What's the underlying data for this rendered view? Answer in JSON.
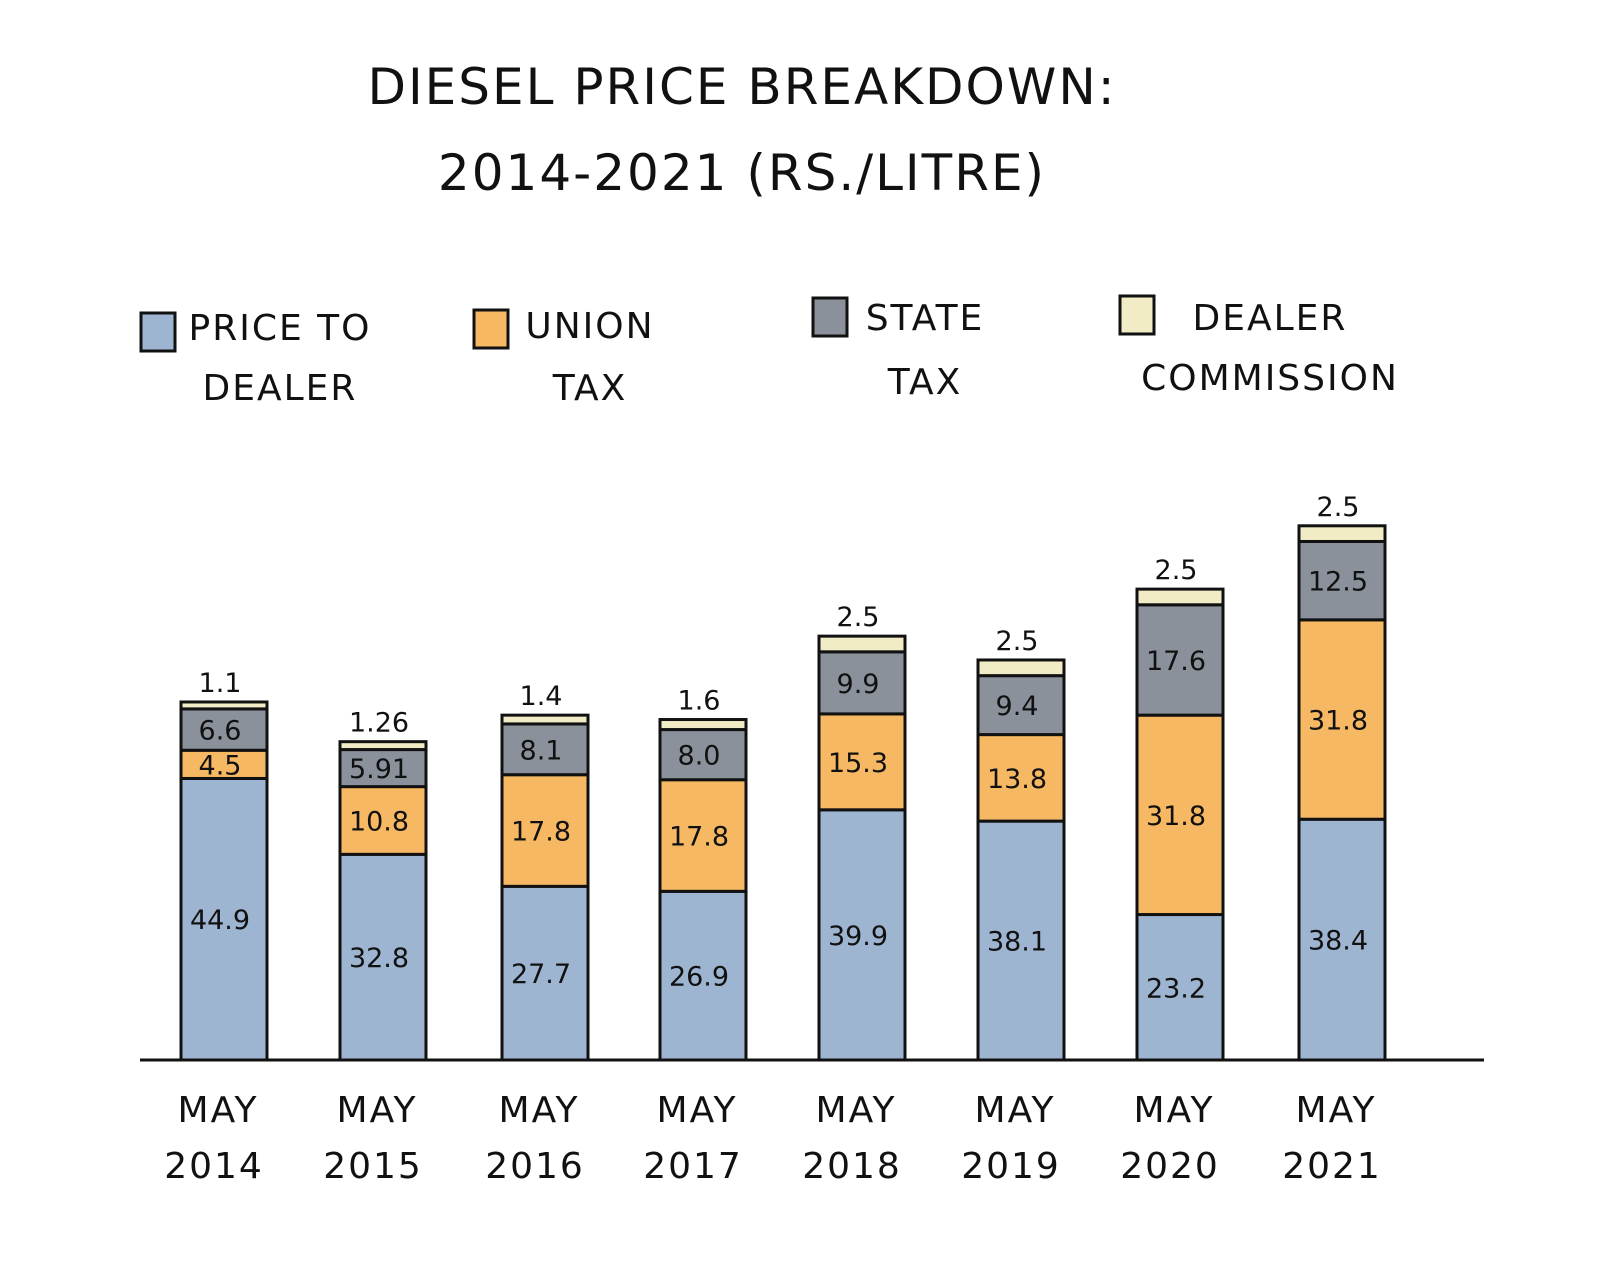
{
  "chart_data": {
    "type": "bar",
    "stacked": true,
    "title_lines": [
      "DIESEL PRICE BREAKDOWN:",
      "2014-2021 (RS./LITRE)"
    ],
    "categories": [
      [
        "MAY",
        "2014"
      ],
      [
        "MAY",
        "2015"
      ],
      [
        "MAY",
        "2016"
      ],
      [
        "MAY",
        "2017"
      ],
      [
        "MAY",
        "2018"
      ],
      [
        "MAY",
        "2019"
      ],
      [
        "MAY",
        "2020"
      ],
      [
        "MAY",
        "2021"
      ]
    ],
    "series": [
      {
        "name_lines": [
          "PRICE TO",
          "DEALER"
        ],
        "color": "#9db5d0",
        "values": [
          44.9,
          32.8,
          27.7,
          26.9,
          39.9,
          38.1,
          23.2,
          38.4
        ],
        "labels": [
          "44.9",
          "32.8",
          "27.7",
          "26.9",
          "39.9",
          "38.1",
          "23.2",
          "38.4"
        ]
      },
      {
        "name_lines": [
          "UNION",
          "TAX"
        ],
        "color": "#f6b862",
        "values": [
          4.5,
          10.8,
          17.8,
          17.8,
          15.3,
          13.8,
          31.8,
          31.8
        ],
        "labels": [
          "4.5",
          "10.8",
          "17.8",
          "17.8",
          "15.3",
          "13.8",
          "31.8",
          "31.8"
        ]
      },
      {
        "name_lines": [
          "STATE",
          "TAX"
        ],
        "color": "#8a919b",
        "values": [
          6.6,
          5.91,
          8.1,
          8.0,
          9.9,
          9.4,
          17.6,
          12.5
        ],
        "labels": [
          "6.6",
          "5.91",
          "8.1",
          "8.0",
          "9.9",
          "9.4",
          "17.6",
          "12.5"
        ]
      },
      {
        "name_lines": [
          "DEALER",
          "COMMISSION"
        ],
        "color": "#f2ecc6",
        "values": [
          1.1,
          1.26,
          1.4,
          1.6,
          2.5,
          2.5,
          2.5,
          2.5
        ],
        "labels": [
          "1.1",
          "1.26",
          "1.4",
          "1.6",
          "2.5",
          "2.5",
          "2.5",
          "2.5"
        ]
      }
    ],
    "legend_position": "top",
    "grid": false,
    "y_axis_shown": false
  }
}
